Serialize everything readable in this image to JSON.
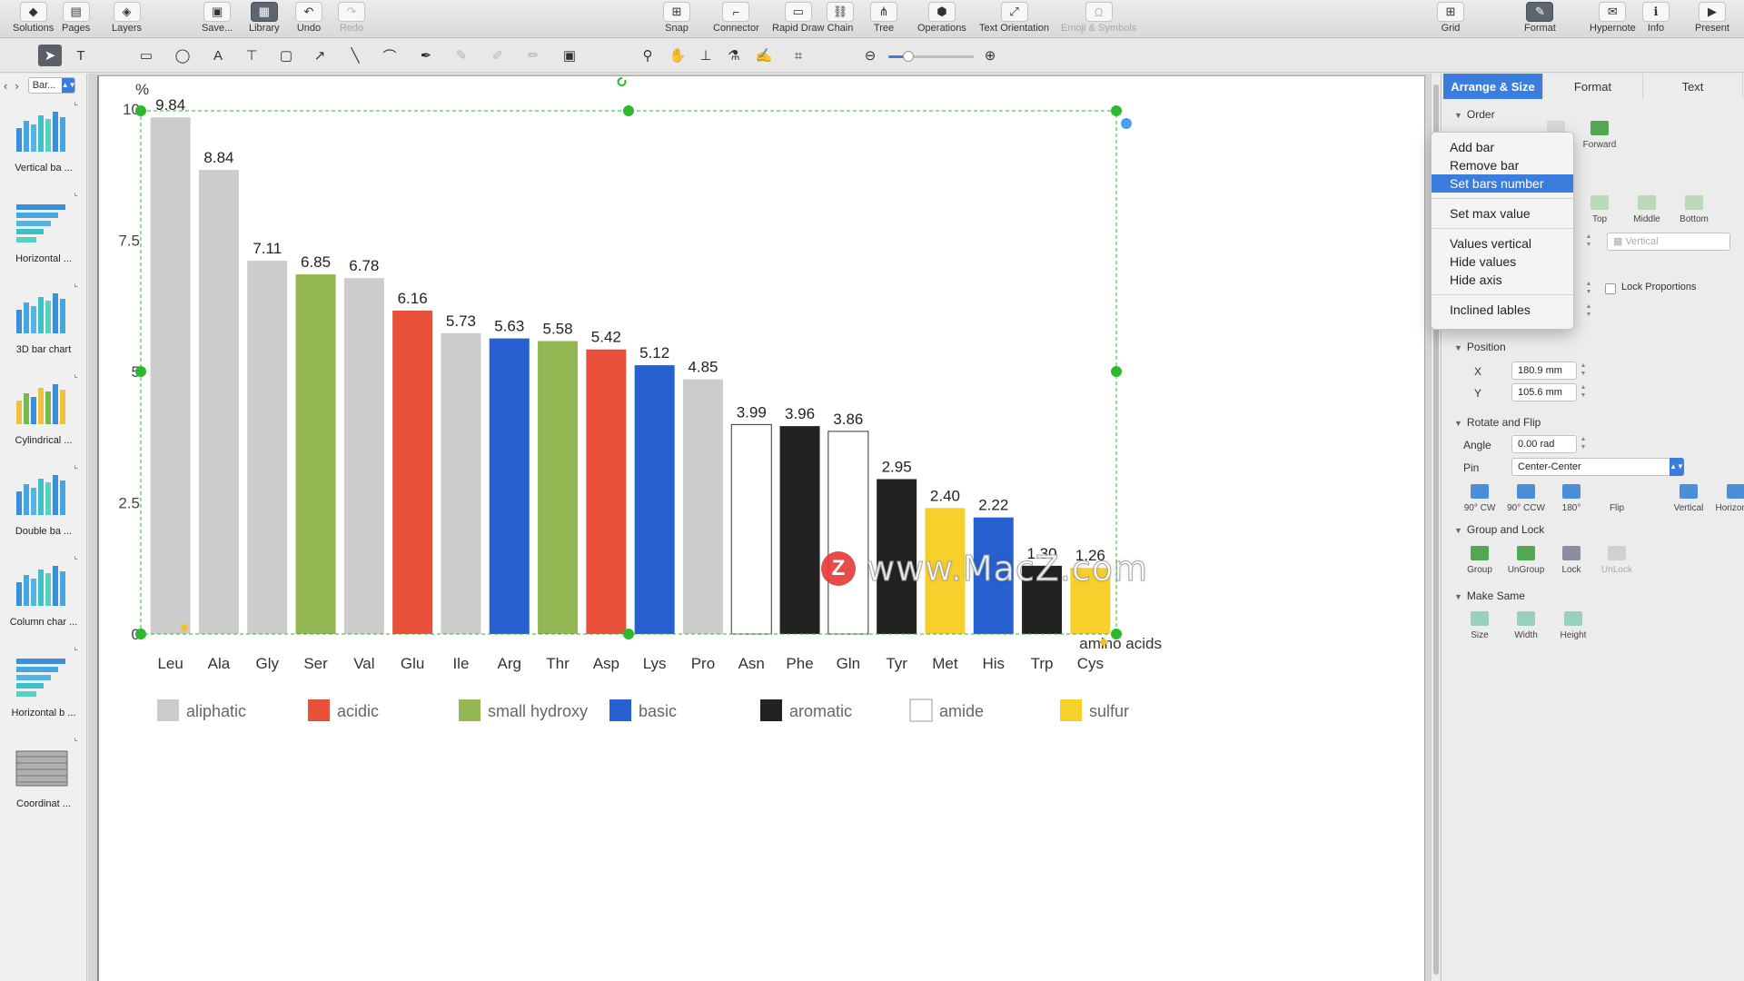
{
  "toolbar": {
    "left": [
      {
        "label": "Solutions",
        "icon": "solutions-icon",
        "glyph": "◆"
      },
      {
        "label": "Pages",
        "icon": "pages-icon",
        "glyph": "▤"
      },
      {
        "label": "Layers",
        "icon": "layers-icon",
        "glyph": "◈"
      },
      {
        "label": "Save...",
        "icon": "save-icon",
        "glyph": "▣"
      },
      {
        "label": "Library",
        "icon": "library-icon",
        "glyph": "▦"
      },
      {
        "label": "Undo",
        "icon": "undo-icon",
        "glyph": "↶"
      },
      {
        "label": "Redo",
        "icon": "redo-icon",
        "glyph": "↷"
      }
    ],
    "center": [
      {
        "label": "Snap",
        "icon": "snap-icon",
        "glyph": "⊞"
      },
      {
        "label": "Connector",
        "icon": "connector-icon",
        "glyph": "⌐"
      },
      {
        "label": "Rapid Draw",
        "icon": "rapid-draw-icon",
        "glyph": "▭"
      },
      {
        "label": "Chain",
        "icon": "chain-icon",
        "glyph": "⛓"
      },
      {
        "label": "Tree",
        "icon": "tree-icon",
        "glyph": "⋔"
      },
      {
        "label": "Operations",
        "icon": "operations-icon",
        "glyph": "⬢"
      },
      {
        "label": "Text Orientation",
        "icon": "text-orientation-icon",
        "glyph": "⤢"
      },
      {
        "label": "Emoji & Symbols",
        "icon": "emoji-symbols-icon",
        "glyph": "Ω"
      }
    ],
    "right": [
      {
        "label": "Grid",
        "icon": "grid-icon",
        "glyph": "⊞"
      },
      {
        "label": "Format",
        "icon": "format-icon",
        "glyph": "✎"
      },
      {
        "label": "Hypernote",
        "icon": "hypernote-icon",
        "glyph": "✉"
      },
      {
        "label": "Info",
        "icon": "info-icon",
        "glyph": "ℹ"
      },
      {
        "label": "Present",
        "icon": "present-icon",
        "glyph": "▶"
      }
    ]
  },
  "library": {
    "selector": "Bar...",
    "items": [
      {
        "label": "Vertical ba ...",
        "thumb": "vertical"
      },
      {
        "label": "Horizontal ...",
        "thumb": "horizontal"
      },
      {
        "label": "3D bar chart",
        "thumb": "3d"
      },
      {
        "label": "Cylindrical ...",
        "thumb": "cylindrical"
      },
      {
        "label": "Double ba ...",
        "thumb": "double"
      },
      {
        "label": "Column char ...",
        "thumb": "column"
      },
      {
        "label": "Horizontal b ...",
        "thumb": "horizontal-b"
      },
      {
        "label": "Coordinat ...",
        "thumb": "coordinate"
      }
    ]
  },
  "chart_data": {
    "type": "bar",
    "ylabel": "%",
    "xlabel": "amino acids",
    "ylim": [
      0,
      10
    ],
    "yticks": [
      "0",
      "2.5",
      "5",
      "7.5",
      "10"
    ],
    "ytick_values": [
      0,
      2.5,
      5,
      7.5,
      10
    ],
    "categories": [
      "Leu",
      "Ala",
      "Gly",
      "Ser",
      "Val",
      "Glu",
      "Ile",
      "Arg",
      "Thr",
      "Asp",
      "Lys",
      "Pro",
      "Asn",
      "Phe",
      "Gln",
      "Tyr",
      "Met",
      "His",
      "Trp",
      "Cys"
    ],
    "values": [
      9.84,
      8.84,
      7.11,
      6.85,
      6.78,
      6.16,
      5.73,
      5.63,
      5.58,
      5.42,
      5.12,
      4.85,
      3.99,
      3.96,
      3.86,
      2.95,
      2.4,
      2.22,
      1.3,
      1.26
    ],
    "value_labels": [
      "9.84",
      "8.84",
      "7.11",
      "6.85",
      "6.78",
      "6.16",
      "5.73",
      "5.63",
      "5.58",
      "5.42",
      "5.12",
      "4.85",
      "3.99",
      "3.96",
      "3.86",
      "2.95",
      "2.40",
      "2.22",
      "1.30",
      "1.26"
    ],
    "groups": [
      "aliphatic",
      "aliphatic",
      "aliphatic",
      "small hydroxy",
      "aliphatic",
      "acidic",
      "aliphatic",
      "basic",
      "small hydroxy",
      "acidic",
      "basic",
      "aliphatic",
      "amide",
      "aromatic",
      "amide",
      "aromatic",
      "sulfur",
      "basic",
      "aromatic",
      "sulfur"
    ],
    "legend": [
      {
        "name": "aliphatic",
        "color": "#cccccc"
      },
      {
        "name": "acidic",
        "color": "#e8503a"
      },
      {
        "name": "small hydroxy",
        "color": "#93b853"
      },
      {
        "name": "basic",
        "color": "#2760d0"
      },
      {
        "name": "aromatic",
        "color": "#222222"
      },
      {
        "name": "amide",
        "color": "#ffffff"
      },
      {
        "name": "sulfur",
        "color": "#f8d02b"
      }
    ],
    "grid": false,
    "legend_position": "bottom"
  },
  "watermark": {
    "logo": "Z",
    "text": "www.MacZ.com"
  },
  "inspector": {
    "tabs": [
      "Arrange & Size",
      "Format",
      "Text"
    ],
    "active_tab": "Arrange & Size",
    "order": {
      "title": "Order",
      "visible_labels": [
        "ward",
        "Forward"
      ]
    },
    "align": {
      "visible_labels": [
        "ht",
        "Top",
        "Middle",
        "Bottom"
      ],
      "select": "Vertical"
    },
    "lock_proportions": "Lock Proportions",
    "position": {
      "title": "Position",
      "x_label": "X",
      "x_value": "180.9 mm",
      "y_label": "Y",
      "y_value": "105.6 mm"
    },
    "rotate": {
      "title": "Rotate and Flip",
      "angle_label": "Angle",
      "angle_value": "0.00 rad",
      "pin_label": "Pin",
      "pin_value": "Center-Center",
      "buttons": [
        "90° CW",
        "90° CCW",
        "180°",
        "Flip",
        "Vertical",
        "Horizontal"
      ]
    },
    "group_lock": {
      "title": "Group and Lock",
      "buttons": [
        "Group",
        "UnGroup",
        "Lock",
        "UnLock"
      ]
    },
    "make_same": {
      "title": "Make Same",
      "buttons": [
        "Size",
        "Width",
        "Height"
      ]
    }
  },
  "context_menu": {
    "items": [
      {
        "label": "Add bar",
        "highlight": false
      },
      {
        "label": "Remove bar",
        "highlight": false
      },
      {
        "label": "Set bars number",
        "highlight": true
      },
      {
        "sep": true
      },
      {
        "label": "Set max value",
        "highlight": false
      },
      {
        "sep": true
      },
      {
        "label": "Values vertical",
        "highlight": false
      },
      {
        "label": "Hide values",
        "highlight": false
      },
      {
        "label": "Hide axis",
        "highlight": false
      },
      {
        "sep": true
      },
      {
        "label": "Inclined lables",
        "highlight": false
      }
    ]
  },
  "colors": {
    "accent": "#3b7ddd",
    "handle": "#2db82d",
    "selection": "#2db82d"
  }
}
